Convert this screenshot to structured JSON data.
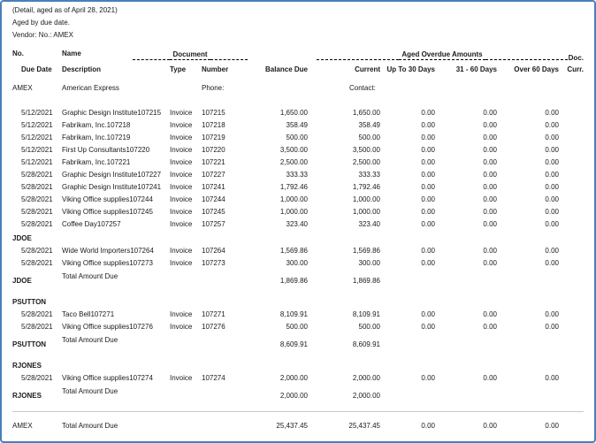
{
  "report": {
    "subtitle_detail": "(Detail, aged as of April 28, 2021)",
    "subtitle_aged_by": "Aged by  due date.",
    "vendor_filter": "Vendor: No.: AMEX"
  },
  "colors": {
    "frame_border": "#4a7ebb",
    "total_rule": "#c9c9c9",
    "text": "#1a1a1a"
  },
  "header": {
    "no": "No.",
    "name": "Name",
    "document_group": "Document",
    "aged_group": "Aged Overdue Amounts",
    "doc": "Doc.",
    "due_date": "Due Date",
    "description": "Description",
    "type": "Type",
    "number": "Number",
    "balance_due": "Balance Due",
    "current": "Current",
    "up_to_30": "Up To 30 Days",
    "d31_60": "31 - 60 Days",
    "over_60": "Over 60 Days",
    "curr": "Curr."
  },
  "vendor": {
    "code": "AMEX",
    "name": "American Express",
    "phone_label": "Phone:",
    "contact_label": "Contact:"
  },
  "invoices": [
    {
      "due_date": "5/12/2021",
      "description": "Graphic Design Institute107215",
      "type": "Invoice",
      "number": "107215",
      "balance_due": "1,650.00",
      "current": "1,650.00",
      "up_to_30": "0.00",
      "d31_60": "0.00",
      "over_60": "0.00"
    },
    {
      "due_date": "5/12/2021",
      "description": "Fabrikam, Inc.107218",
      "type": "Invoice",
      "number": "107218",
      "balance_due": "358.49",
      "current": "358.49",
      "up_to_30": "0.00",
      "d31_60": "0.00",
      "over_60": "0.00"
    },
    {
      "due_date": "5/12/2021",
      "description": "Fabrikam, Inc.107219",
      "type": "Invoice",
      "number": "107219",
      "balance_due": "500.00",
      "current": "500.00",
      "up_to_30": "0.00",
      "d31_60": "0.00",
      "over_60": "0.00"
    },
    {
      "due_date": "5/12/2021",
      "description": "First Up Consultants107220",
      "type": "Invoice",
      "number": "107220",
      "balance_due": "3,500.00",
      "current": "3,500.00",
      "up_to_30": "0.00",
      "d31_60": "0.00",
      "over_60": "0.00"
    },
    {
      "due_date": "5/12/2021",
      "description": "Fabrikam, Inc.107221",
      "type": "Invoice",
      "number": "107221",
      "balance_due": "2,500.00",
      "current": "2,500.00",
      "up_to_30": "0.00",
      "d31_60": "0.00",
      "over_60": "0.00"
    },
    {
      "due_date": "5/28/2021",
      "description": "Graphic Design Institute107227",
      "type": "Invoice",
      "number": "107227",
      "balance_due": "333.33",
      "current": "333.33",
      "up_to_30": "0.00",
      "d31_60": "0.00",
      "over_60": "0.00"
    },
    {
      "due_date": "5/28/2021",
      "description": "Graphic Design Institute107241",
      "type": "Invoice",
      "number": "107241",
      "balance_due": "1,792.46",
      "current": "1,792.46",
      "up_to_30": "0.00",
      "d31_60": "0.00",
      "over_60": "0.00"
    },
    {
      "due_date": "5/28/2021",
      "description": "Viking Office supplies107244",
      "type": "Invoice",
      "number": "107244",
      "balance_due": "1,000.00",
      "current": "1,000.00",
      "up_to_30": "0.00",
      "d31_60": "0.00",
      "over_60": "0.00"
    },
    {
      "due_date": "5/28/2021",
      "description": "Viking Office supplies107245",
      "type": "Invoice",
      "number": "107245",
      "balance_due": "1,000.00",
      "current": "1,000.00",
      "up_to_30": "0.00",
      "d31_60": "0.00",
      "over_60": "0.00"
    },
    {
      "due_date": "5/28/2021",
      "description": "Coffee Day107257",
      "type": "Invoice",
      "number": "107257",
      "balance_due": "323.40",
      "current": "323.40",
      "up_to_30": "0.00",
      "d31_60": "0.00",
      "over_60": "0.00"
    }
  ],
  "groups": [
    {
      "code": "JDOE",
      "rows": [
        {
          "due_date": "5/28/2021",
          "description": "Wide World Importers107264",
          "type": "Invoice",
          "number": "107264",
          "balance_due": "1,569.86",
          "current": "1,569.86",
          "up_to_30": "0.00",
          "d31_60": "0.00",
          "over_60": "0.00"
        },
        {
          "due_date": "5/28/2021",
          "description": "Viking Office supplies107273",
          "type": "Invoice",
          "number": "107273",
          "balance_due": "300.00",
          "current": "300.00",
          "up_to_30": "0.00",
          "d31_60": "0.00",
          "over_60": "0.00"
        }
      ],
      "total_label": "Total Amount Due",
      "total_balance_due": "1,869.86",
      "total_current": "1,869.86"
    },
    {
      "code": "PSUTTON",
      "rows": [
        {
          "due_date": "5/28/2021",
          "description": "Taco Bell107271",
          "type": "Invoice",
          "number": "107271",
          "balance_due": "8,109.91",
          "current": "8,109.91",
          "up_to_30": "0.00",
          "d31_60": "0.00",
          "over_60": "0.00"
        },
        {
          "due_date": "5/28/2021",
          "description": "Viking Office supplies107276",
          "type": "Invoice",
          "number": "107276",
          "balance_due": "500.00",
          "current": "500.00",
          "up_to_30": "0.00",
          "d31_60": "0.00",
          "over_60": "0.00"
        }
      ],
      "total_label": "Total Amount Due",
      "total_balance_due": "8,609.91",
      "total_current": "8,609.91"
    },
    {
      "code": "RJONES",
      "rows": [
        {
          "due_date": "5/28/2021",
          "description": "Viking Office supplies107274",
          "type": "Invoice",
          "number": "107274",
          "balance_due": "2,000.00",
          "current": "2,000.00",
          "up_to_30": "0.00",
          "d31_60": "0.00",
          "over_60": "0.00"
        }
      ],
      "total_label": "Total Amount Due",
      "total_balance_due": "2,000.00",
      "total_current": "2,000.00"
    }
  ],
  "grand_total": {
    "code": "AMEX",
    "label": "Total Amount Due",
    "balance_due": "25,437.45",
    "current": "25,437.45",
    "up_to_30": "0.00",
    "d31_60": "0.00",
    "over_60": "0.00"
  }
}
